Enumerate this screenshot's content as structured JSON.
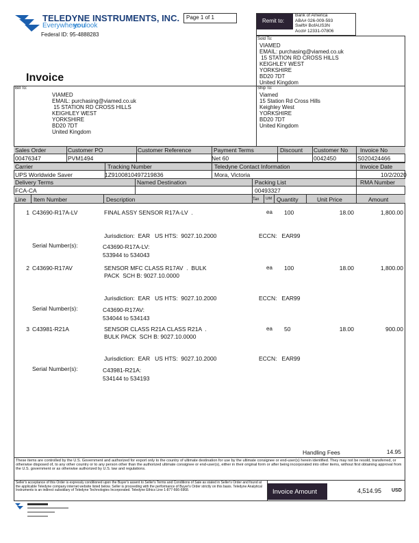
{
  "header": {
    "company": "TELEDYNE INSTRUMENTS, INC.",
    "tagline": [
      "Everywhere",
      "you",
      "look"
    ],
    "federal_id": "Federal ID: 95-4888283",
    "page": "Page 1 of 1",
    "title": "Invoice"
  },
  "remit": {
    "label": "Remit to:",
    "lines": [
      "Bank of America",
      "ABA# 026-009-593",
      "Swift# BofAUS3N",
      "Acct# 12331-07806"
    ]
  },
  "sold_to": {
    "label": "Sold To:",
    "lines": [
      "VIAMED",
      "EMAIL: purchasing@viamed.co.uk",
      " 15 STATION RD CROSS HILLS",
      "KEIGHLEY WEST",
      "YORKSHIRE",
      "BD20 7DT",
      "United Kingdom"
    ]
  },
  "bill_to": {
    "label": "Bill To:",
    "lines": [
      "VIAMED",
      "EMAIL: purchasing@viamed.co.uk",
      " 15 STATION RD CROSS HILLS",
      "KEIGHLEY WEST",
      "YORKSHIRE",
      "BD20 7DT",
      "United Kingdom"
    ]
  },
  "ship_to": {
    "label": "Ship To:",
    "lines": [
      "Viamed",
      "15 Station Rd Cross Hills",
      "Keighley West",
      "YORKSHIRE",
      "BD20 7DT",
      "United Kingdom"
    ]
  },
  "info": [
    [
      {
        "label": "Sales Order",
        "value": "00476347"
      },
      {
        "label": "Customer PO",
        "value": "PVM1494"
      },
      {
        "label": "Customer Reference"
      },
      {
        "label": "Payment Terms",
        "value": "Net 60"
      },
      {
        "label": "Discount"
      },
      {
        "label": "Customer No",
        "value": "0042450"
      },
      {
        "label": "Invoice No",
        "value": "S020424466"
      }
    ],
    [
      {
        "label": "Carrier",
        "value": "UPS Worldwide Saver"
      },
      {
        "label": "Tracking Number",
        "value": "1Z9100810497219836"
      },
      {
        "label": "Teledyne Contact Information",
        "value": "Mora, Victoria"
      },
      {
        "label": "Invoice Date",
        "value": "10/2/2020"
      }
    ],
    [
      {
        "label": "Delivery Terms",
        "value": "FCA-CA"
      },
      {
        "label": "Named Destination"
      },
      {
        "label": "Packing List",
        "value": "00493327"
      },
      {
        "label": "RMA Number"
      }
    ]
  ],
  "line_header": [
    "Line",
    "Item Number",
    "Description",
    "Tax",
    "U/M",
    "Quantity",
    "Unit Price",
    "Amount"
  ],
  "items": [
    {
      "line": 1,
      "item": "C43690-R17A-LV",
      "description": [
        "FINAL ASSY SENSOR R17A-LV  ."
      ],
      "um": "ea",
      "quantity": 100,
      "unit_price": "18.00",
      "amount": "1,800.00",
      "jurisdiction": "Jurisdiction:  EAR   US HTS:  9027.10.2000",
      "eccn": "ECCN:   EAR99",
      "serial_label": "Serial Number(s):",
      "serials": [
        "C43690-R17A-LV:",
        "533944 to 534043"
      ]
    },
    {
      "line": 2,
      "item": "C43690-R17AV",
      "description": [
        "SENSOR MFC CLASS R17AV  .  BULK",
        "PACK  SCH B: 9027.10.0000"
      ],
      "um": "ea",
      "quantity": 100,
      "unit_price": "18.00",
      "amount": "1,800.00",
      "jurisdiction": "Jurisdiction:  EAR   US HTS:  9027.10.2000",
      "eccn": "ECCN:   EAR99",
      "serial_label": "Serial Number(s):",
      "serials": [
        "C43690-R17AV:",
        "534044 to 534143"
      ]
    },
    {
      "line": 3,
      "item": "C43981-R21A",
      "description": [
        "SENSOR CLASS R21A CLASS R21A  .",
        "BULK PACK  SCH B: 9027.10.0000"
      ],
      "um": "ea",
      "quantity": 50,
      "unit_price": "18.00",
      "amount": "900.00",
      "jurisdiction": "Jurisdiction:  EAR   US HTS:  9027.10.2000",
      "eccn": "ECCN:   EAR99",
      "serial_label": "Serial Number(s):",
      "serials": [
        "C43981-R21A:",
        "534144 to 534193"
      ]
    }
  ],
  "handling": {
    "label": "Handling Fees",
    "value": "14.95"
  },
  "footer": {
    "export_notice": "These items are controlled by the U.S. Government and authorized for export only to the country of ultimate destination for use by the ultimate consignee or end-user(s) herein identified. They may not be resold, transferred, or otherwise disposed of, to any other country or to any person other than the authorized ultimate consignee or end-user(s), either in their original form or after being incorporated into other items, without first obtaining approval from the U.S. government or as otherwise authorized by U.S. law and regulations.",
    "terms": "Seller's acceptance of this Order is expressly conditioned upon the Buyer's assent to Seller's Terms and Conditions of Sale as stated in Seller's Order and found at the applicable Teledyne company internet website listed below. Seller is proceeding with the performance of Buyer's Order strictly on this basis. Teledyne Analytical Instruments is an indirect subsidiary of Teledyne Technologies Incorporated. Teledyne Ethics Line 1-877-666-6968.",
    "total_label": "Invoice Amount",
    "total": "4,514.95",
    "currency": "USD"
  }
}
